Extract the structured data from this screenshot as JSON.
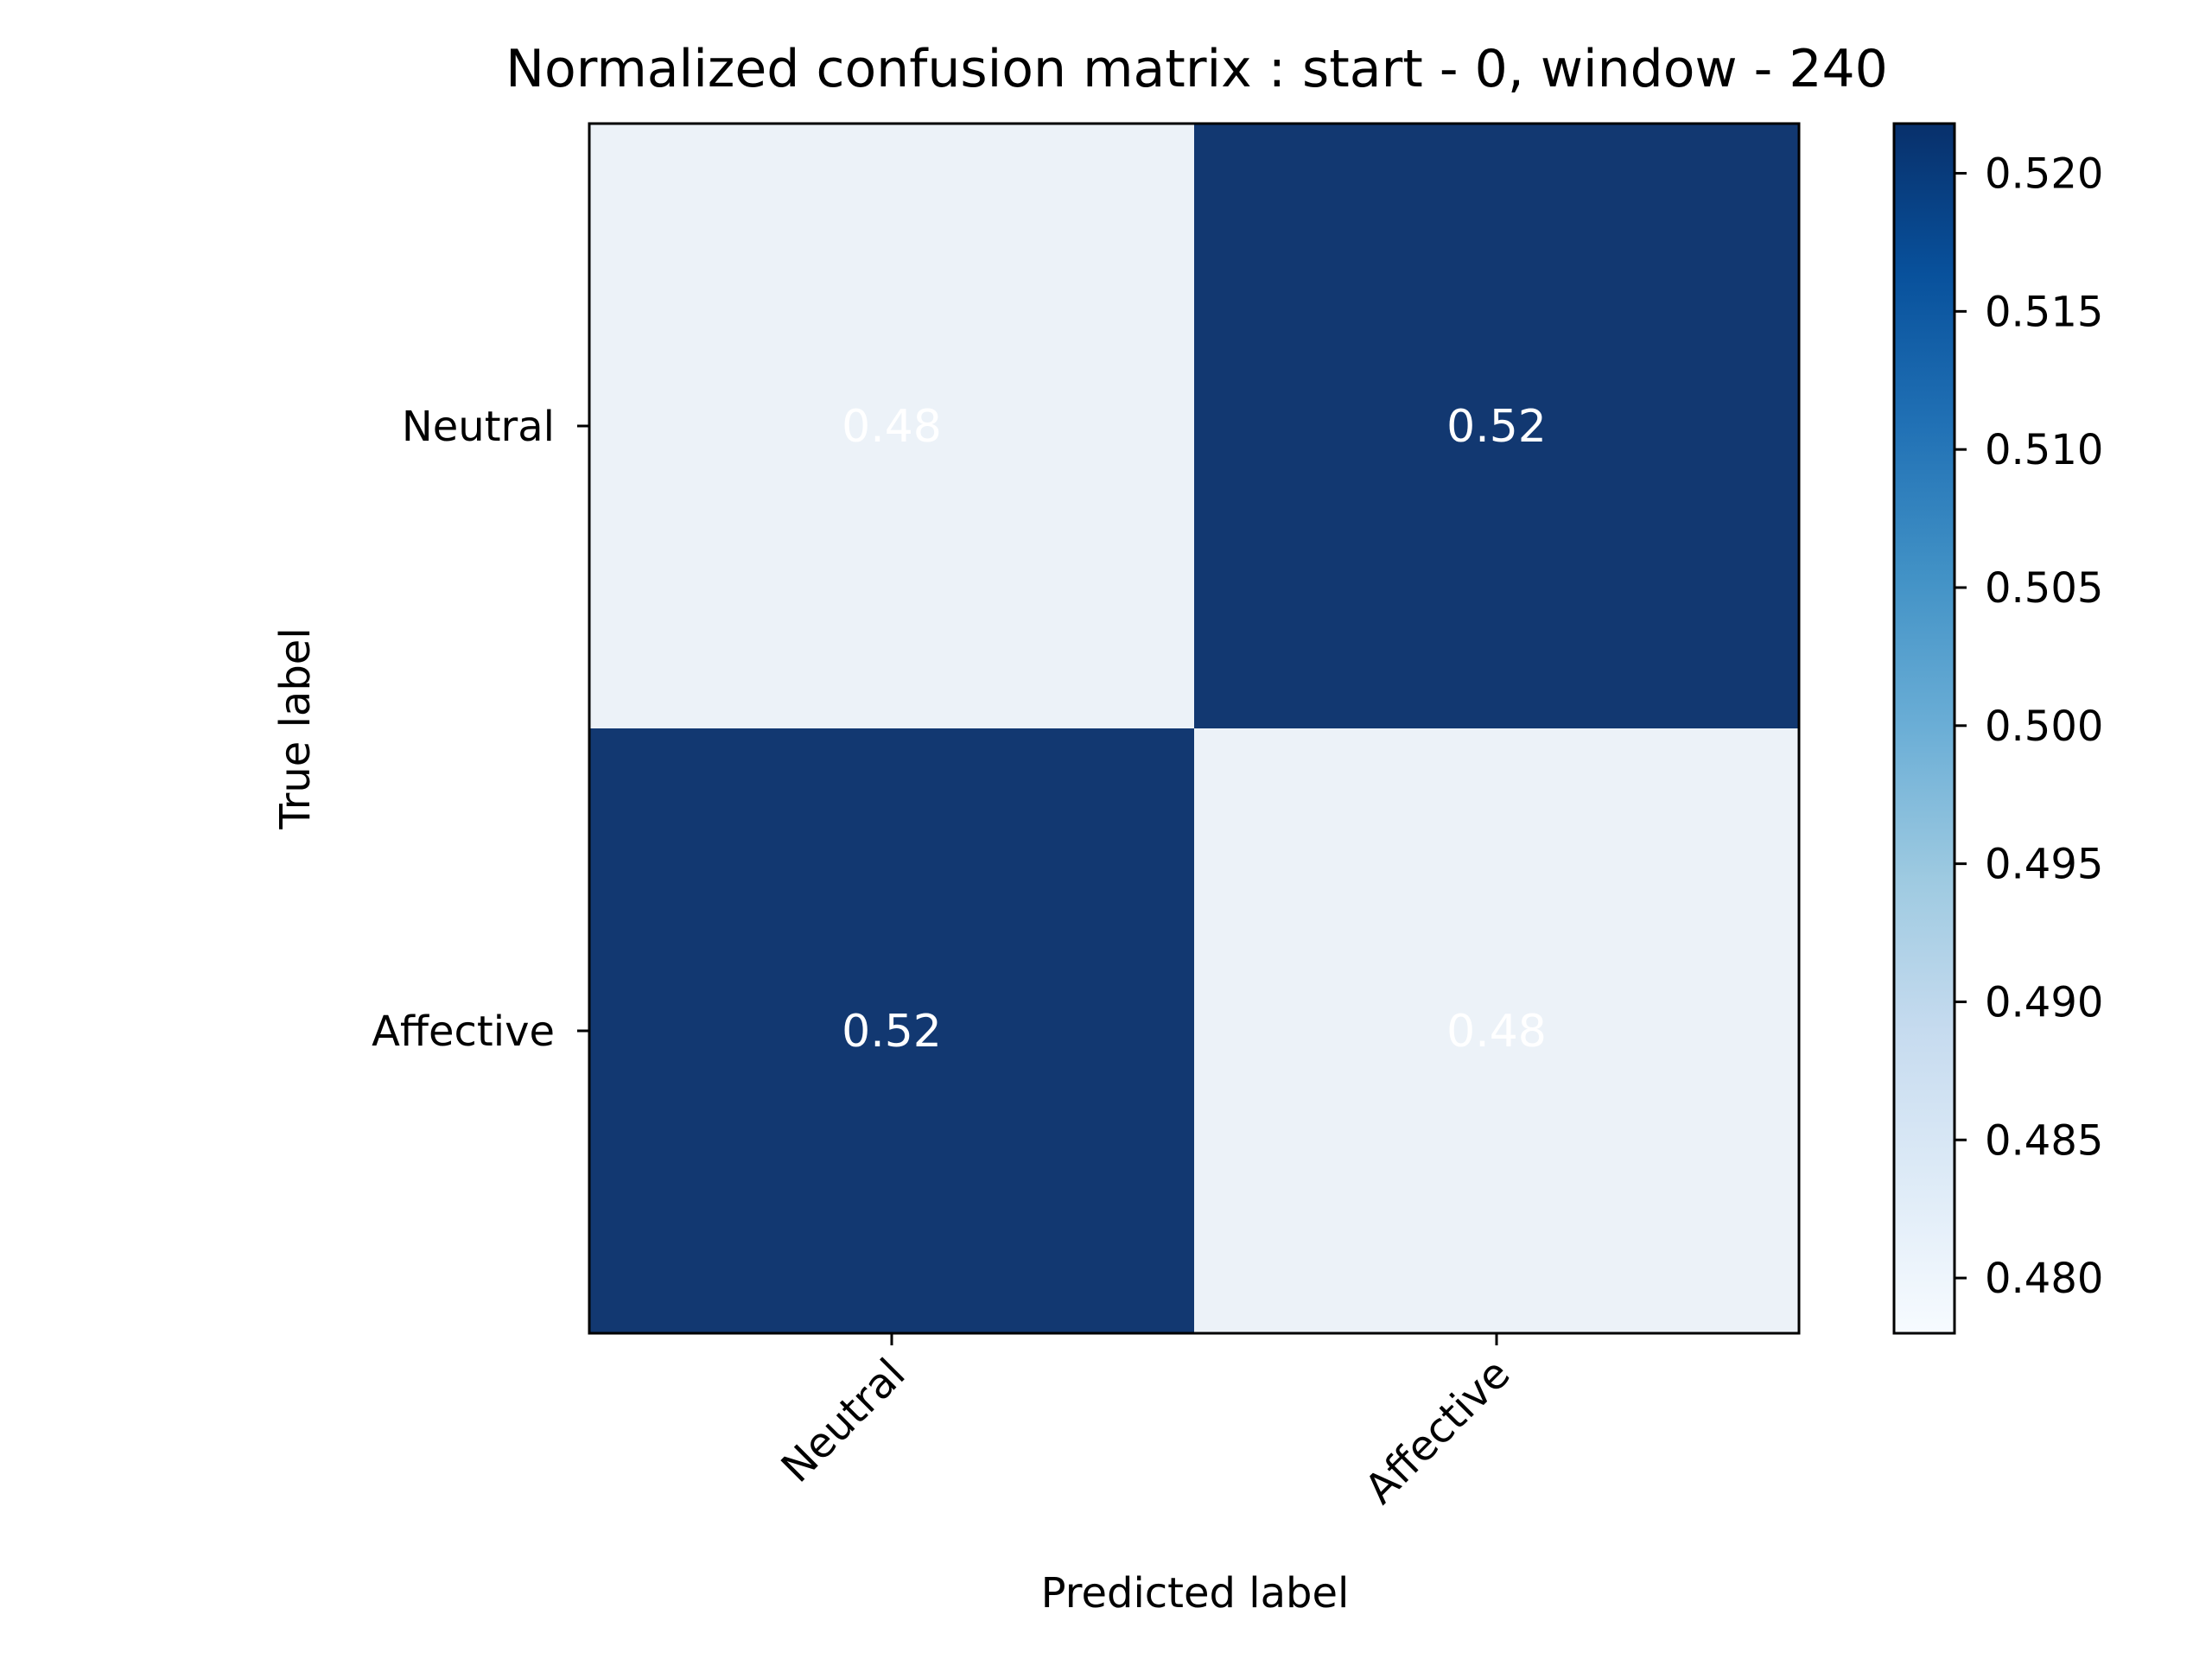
{
  "chart_data": {
    "type": "heatmap",
    "title": "Normalized confusion matrix : start - 0, window - 240",
    "xlabel": "Predicted label",
    "ylabel": "True label",
    "x_categories": [
      "Neutral",
      "Affective"
    ],
    "y_categories": [
      "Neutral",
      "Affective"
    ],
    "values": [
      [
        0.48,
        0.52
      ],
      [
        0.52,
        0.48
      ]
    ],
    "cell_labels": [
      [
        "0.48",
        "0.52"
      ],
      [
        "0.52",
        "0.48"
      ]
    ],
    "colormap": "Blues",
    "colorbar": {
      "range": [
        0.478,
        0.5218
      ],
      "ticks": [
        0.48,
        0.485,
        0.49,
        0.495,
        0.5,
        0.505,
        0.51,
        0.515,
        0.52
      ],
      "tick_labels": [
        "0.480",
        "0.485",
        "0.490",
        "0.495",
        "0.500",
        "0.505",
        "0.510",
        "0.515",
        "0.520"
      ]
    },
    "colors": {
      "low": "#f7fbff",
      "high": "#08306b",
      "cell_text": "#ffffff"
    }
  }
}
